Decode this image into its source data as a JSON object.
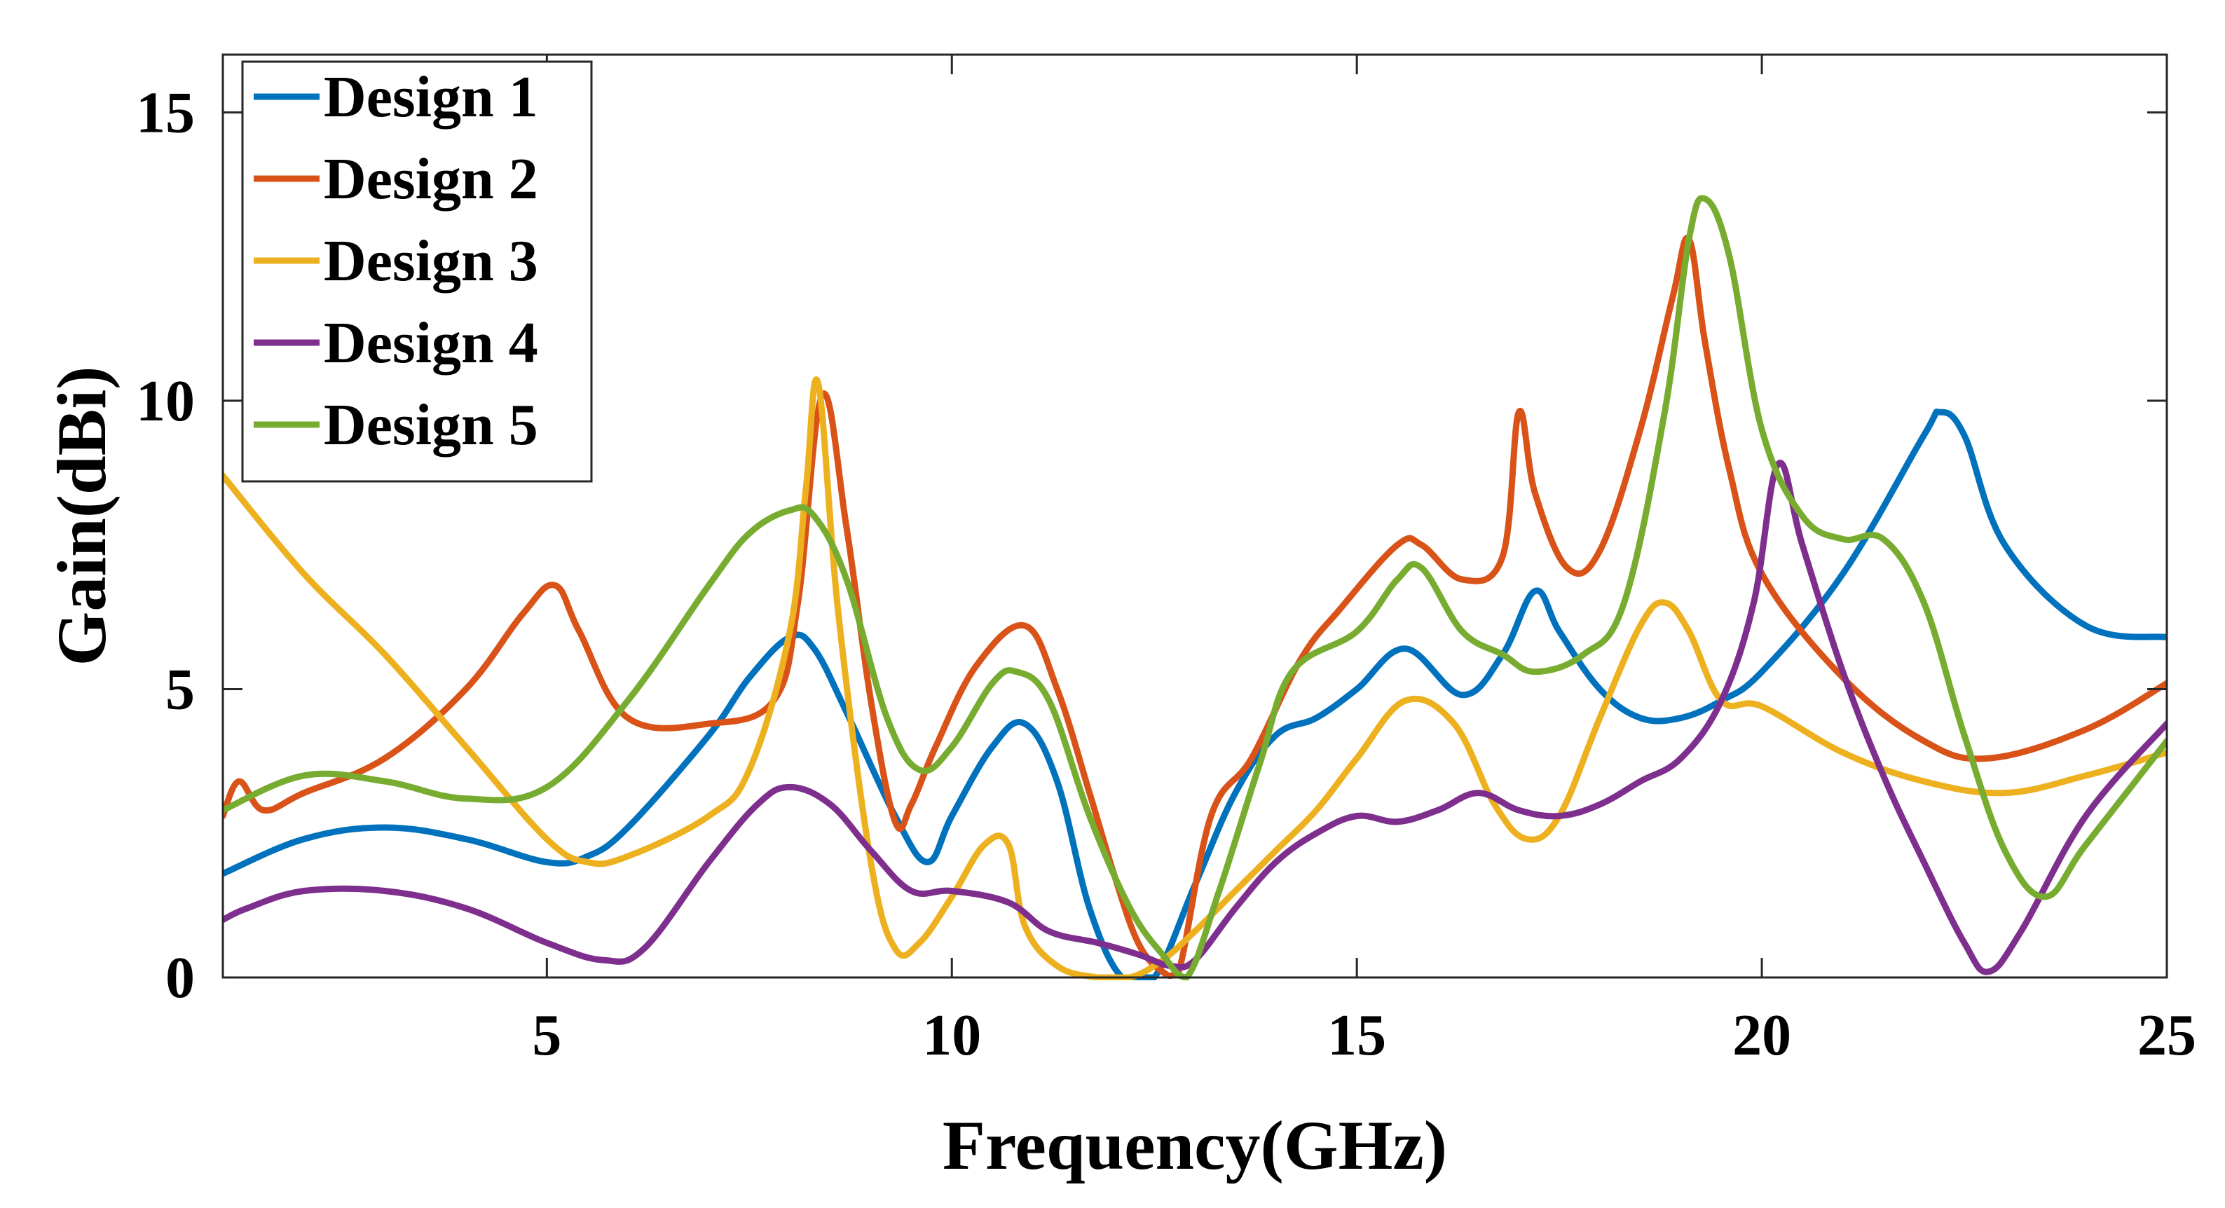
{
  "chart_data": {
    "type": "line",
    "title": "",
    "xlabel": "Frequency(GHz)",
    "ylabel": "Gain(dBi)",
    "xlim": [
      1,
      25
    ],
    "ylim": [
      0,
      16
    ],
    "xticks": [
      5,
      10,
      15,
      20,
      25
    ],
    "xtick_labels": [
      "5",
      "10",
      "15",
      "20",
      "25"
    ],
    "yticks": [
      0,
      5,
      10,
      15
    ],
    "ytick_labels": [
      "0",
      "5",
      "10",
      "15"
    ],
    "grid": false,
    "legend_position": "top-left",
    "series": [
      {
        "name": "Design 1",
        "color": "#0072BD",
        "x": [
          1,
          2,
          3,
          4,
          5,
          5.5,
          6,
          7,
          7.5,
          8,
          8.3,
          8.7,
          9.3,
          9.7,
          10,
          10.5,
          10.9,
          11.3,
          11.7,
          12.1,
          12.5,
          13,
          13.5,
          14,
          14.5,
          15,
          15.6,
          16.3,
          16.8,
          17.2,
          17.5,
          18,
          18.5,
          19,
          19.5,
          20,
          21,
          22,
          22.2,
          22.5,
          23,
          24,
          25
        ],
        "y": [
          1.8,
          2.4,
          2.6,
          2.4,
          2.0,
          2.1,
          2.6,
          4.2,
          5.2,
          5.9,
          5.7,
          4.6,
          2.8,
          2.0,
          2.8,
          4.0,
          4.4,
          3.4,
          1.2,
          0.0,
          0.0,
          1.6,
          3.2,
          4.2,
          4.5,
          5.0,
          5.7,
          4.9,
          5.6,
          6.7,
          6.0,
          5.0,
          4.5,
          4.5,
          4.8,
          5.3,
          7.0,
          9.4,
          9.8,
          9.4,
          7.5,
          6.1,
          5.9
        ]
      },
      {
        "name": "Design 2",
        "color": "#D95319",
        "x": [
          1,
          1.2,
          1.5,
          2,
          3,
          4,
          4.7,
          5.1,
          5.4,
          6,
          7,
          7.8,
          8.1,
          8.4,
          8.7,
          9,
          9.3,
          9.5,
          9.8,
          10.3,
          10.9,
          11.3,
          11.7,
          12,
          12.3,
          12.6,
          12.8,
          13.2,
          13.7,
          14.3,
          14.8,
          15.5,
          15.8,
          16.3,
          16.8,
          17,
          17.2,
          17.6,
          18,
          18.5,
          18.9,
          19.1,
          19.3,
          19.6,
          20,
          21,
          22,
          22.8,
          24,
          25
        ],
        "y": [
          2.8,
          3.4,
          2.9,
          3.2,
          3.8,
          5.0,
          6.3,
          6.8,
          6.0,
          4.5,
          4.4,
          4.8,
          6.5,
          10.1,
          7.8,
          4.8,
          2.7,
          3.0,
          4.0,
          5.4,
          6.1,
          5.0,
          3.2,
          1.8,
          0.6,
          0.1,
          0.1,
          2.8,
          3.8,
          5.5,
          6.4,
          7.5,
          7.5,
          6.9,
          7.3,
          9.8,
          8.4,
          7.1,
          7.4,
          9.5,
          11.8,
          12.8,
          11.0,
          8.8,
          7.0,
          5.2,
          4.1,
          3.8,
          4.3,
          5.1
        ]
      },
      {
        "name": "Design 3",
        "color": "#EDB120",
        "x": [
          1,
          2,
          3,
          4,
          5,
          5.5,
          6,
          7,
          7.5,
          8,
          8.2,
          8.35,
          8.6,
          9,
          9.3,
          9.6,
          10,
          10.4,
          10.7,
          10.9,
          11.3,
          11.8,
          12.2,
          12.6,
          13,
          13.5,
          14,
          14.5,
          15,
          15.6,
          16.2,
          16.7,
          17.1,
          17.5,
          18,
          18.5,
          18.8,
          19.1,
          19.5,
          20,
          21,
          22,
          23,
          24,
          25
        ],
        "y": [
          8.7,
          7.0,
          5.6,
          4.0,
          2.4,
          2.0,
          2.1,
          2.8,
          3.6,
          6.0,
          8.5,
          10.3,
          6.3,
          2.0,
          0.5,
          0.6,
          1.4,
          2.3,
          2.3,
          0.9,
          0.2,
          0.0,
          0.0,
          0.3,
          0.8,
          1.5,
          2.2,
          2.9,
          3.8,
          4.8,
          4.4,
          3.0,
          2.4,
          2.8,
          4.5,
          6.1,
          6.5,
          6.0,
          4.8,
          4.7,
          3.9,
          3.4,
          3.2,
          3.5,
          3.9
        ]
      },
      {
        "name": "Design 4",
        "color": "#7E2F8E",
        "x": [
          1,
          1.3,
          2,
          3,
          4,
          5,
          5.7,
          6.2,
          7,
          7.6,
          8,
          8.5,
          9,
          9.5,
          10,
          10.7,
          11.2,
          11.8,
          12.3,
          12.7,
          13,
          13.5,
          14,
          14.5,
          15,
          15.5,
          16,
          16.5,
          17,
          17.5,
          18,
          18.5,
          19,
          19.5,
          19.9,
          20.2,
          20.5,
          21,
          21.5,
          22,
          22.5,
          22.8,
          23.2,
          24,
          25
        ],
        "y": [
          1.0,
          1.2,
          1.5,
          1.5,
          1.2,
          0.6,
          0.3,
          0.5,
          2.0,
          3.0,
          3.3,
          3.0,
          2.2,
          1.5,
          1.5,
          1.3,
          0.8,
          0.6,
          0.4,
          0.2,
          0.3,
          1.2,
          2.0,
          2.5,
          2.8,
          2.7,
          2.9,
          3.2,
          2.9,
          2.8,
          3.0,
          3.4,
          3.8,
          4.8,
          6.5,
          8.9,
          7.5,
          5.3,
          3.5,
          2.0,
          0.6,
          0.1,
          0.8,
          2.8,
          4.4
        ]
      },
      {
        "name": "Design 5",
        "color": "#77AC30",
        "x": [
          1,
          2,
          3,
          4,
          5,
          6,
          7,
          7.5,
          8,
          8.3,
          8.7,
          9.2,
          9.6,
          10,
          10.5,
          10.8,
          11.2,
          11.7,
          12.2,
          12.6,
          12.9,
          13.3,
          13.8,
          14.2,
          15,
          15.5,
          15.8,
          16.3,
          16.8,
          17.2,
          17.8,
          18.3,
          18.8,
          19.1,
          19.3,
          19.6,
          20,
          20.5,
          21,
          21.5,
          22,
          22.5,
          23,
          23.5,
          24,
          25
        ],
        "y": [
          2.9,
          3.5,
          3.4,
          3.1,
          3.3,
          4.8,
          6.8,
          7.7,
          8.1,
          8.0,
          6.9,
          4.5,
          3.6,
          4.0,
          5.1,
          5.3,
          4.8,
          2.8,
          1.2,
          0.4,
          0.0,
          1.5,
          3.7,
          5.3,
          6.0,
          6.9,
          7.1,
          6.0,
          5.6,
          5.3,
          5.6,
          6.5,
          9.8,
          12.8,
          13.5,
          12.5,
          9.5,
          8.0,
          7.6,
          7.6,
          6.5,
          4.2,
          2.2,
          1.4,
          2.3,
          4.1
        ]
      }
    ]
  }
}
